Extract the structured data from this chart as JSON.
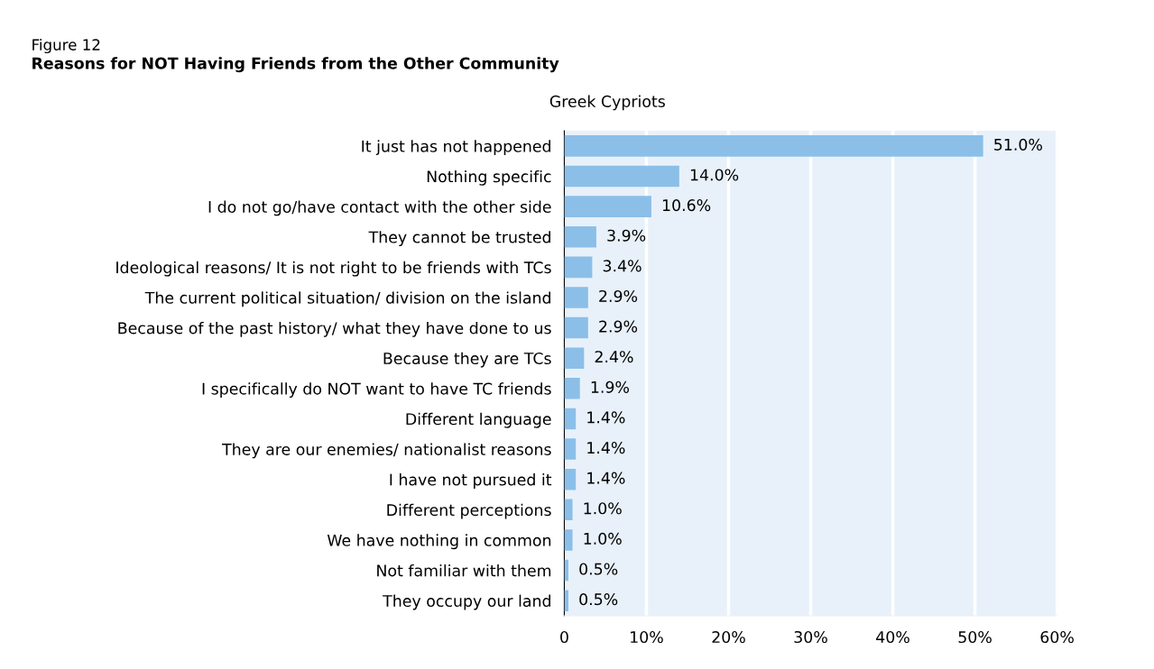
{
  "chart_data": {
    "type": "bar",
    "orientation": "horizontal",
    "title": "Reasons for NOT Having Friends from the Other Community",
    "subtitle": "Greek Cypriots",
    "annotations": [
      "Figure 12"
    ],
    "categories": [
      "It just has not happened",
      "Nothing specific",
      "I do not go/have contact with the other side",
      "They cannot be trusted",
      "Ideological reasons/ It is not right to be friends with TCs",
      "The current political situation/ division on the island",
      "Because of the past history/ what they have done to us",
      "Because they are TCs",
      "I specifically do NOT want to have TC friends",
      "Different language",
      "They are our enemies/ nationalist reasons",
      "I have not pursued it",
      "Different perceptions",
      "We have nothing in common",
      "Not familiar with them",
      "They occupy our land"
    ],
    "values": [
      51.0,
      14.0,
      10.6,
      3.9,
      3.4,
      2.9,
      2.9,
      2.4,
      1.9,
      1.4,
      1.4,
      1.4,
      1.0,
      1.0,
      0.5,
      0.5
    ],
    "value_labels": [
      "51.0%",
      "14.0%",
      "10.6%",
      "3.9%",
      "3.4%",
      "2.9%",
      "2.9%",
      "2.4%",
      "1.9%",
      "1.4%",
      "1.4%",
      "1.4%",
      "1.0%",
      "1.0%",
      "0.5%",
      "0.5%"
    ],
    "color": "#8bbfe8",
    "xlim": [
      0,
      60
    ],
    "xticks": [
      0,
      {
        "value": 10,
        "label": "10%"
      },
      {
        "value": 20,
        "label": "20%"
      },
      {
        "value": 30,
        "label": "30%"
      },
      {
        "value": 40,
        "label": "40%"
      },
      {
        "value": 50,
        "label": "50%"
      },
      {
        "value": 60,
        "label": "60%"
      }
    ],
    "grid": "x",
    "legend": false
  }
}
